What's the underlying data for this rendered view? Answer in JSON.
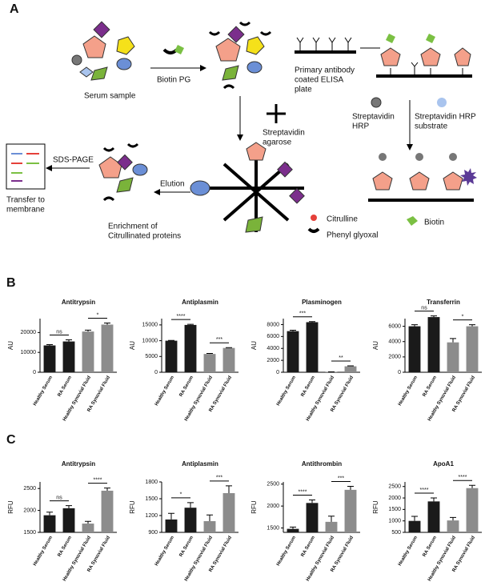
{
  "panel_a": {
    "label": "A",
    "serum_sample": "Serum sample",
    "biotin_pg": "Biotin PG",
    "plate": [
      "Primary antibody",
      "coated ELISA",
      "plate"
    ],
    "streptavidin_agarose": [
      "Streptavidin",
      "agarose"
    ],
    "streptavidin_hrp": [
      "Streptavidin",
      "HRP"
    ],
    "hrp_substrate": [
      "Streptavidin HRP",
      "substrate"
    ],
    "elution": "Elution",
    "sds_page": "SDS-PAGE",
    "transfer": [
      "Transfer to",
      "membrane"
    ],
    "enrichment": [
      "Enrichment of",
      "Citrullinated proteins"
    ],
    "legend": {
      "citrulline": "Citrulline",
      "phenyl_glyoxal": "Phenyl glyoxal",
      "biotin": "Biotin"
    }
  },
  "panel_b": {
    "label": "B"
  },
  "panel_c": {
    "label": "C"
  },
  "chart_data": [
    {
      "type": "bar",
      "title": "Antitrypsin",
      "ylabel": "AU",
      "categories": [
        "Healthy Serum",
        "RA Serum",
        "Healthy Synovial Fluid",
        "RA Synovial Fluid"
      ],
      "values": [
        13500,
        15500,
        20500,
        24000
      ],
      "errors": [
        400,
        800,
        700,
        800
      ],
      "colors": [
        "#1a1a1a",
        "#1a1a1a",
        "#8c8c8c",
        "#8c8c8c"
      ],
      "significance": [
        "ns",
        "*"
      ],
      "ylim": [
        0,
        27000
      ],
      "yticks": [
        0,
        10000,
        20000
      ]
    },
    {
      "type": "bar",
      "title": "Antiplasmin",
      "ylabel": "AU",
      "categories": [
        "Healthy Serum",
        "RA Serum",
        "Healthy Synovial Fluid",
        "RA Synovial Fluid"
      ],
      "values": [
        10000,
        15000,
        5800,
        7700
      ],
      "errors": [
        100,
        200,
        150,
        100
      ],
      "colors": [
        "#1a1a1a",
        "#1a1a1a",
        "#8c8c8c",
        "#8c8c8c"
      ],
      "significance": [
        "****",
        "***"
      ],
      "ylim": [
        0,
        17000
      ],
      "yticks": [
        0,
        5000,
        10000,
        15000
      ]
    },
    {
      "type": "bar",
      "title": "Plasminogen",
      "ylabel": "AU",
      "categories": [
        "Healthy Serum",
        "RA Serum",
        "Healthy Synovial Fluid",
        "RA Synovial Fluid"
      ],
      "values": [
        6900,
        8400,
        50,
        1000
      ],
      "errors": [
        150,
        100,
        20,
        80
      ],
      "colors": [
        "#1a1a1a",
        "#1a1a1a",
        "#8c8c8c",
        "#8c8c8c"
      ],
      "significance": [
        "***",
        "**"
      ],
      "ylim": [
        0,
        9000
      ],
      "yticks": [
        0,
        2000,
        4000,
        6000,
        8000
      ]
    },
    {
      "type": "bar",
      "title": "Transferrin",
      "ylabel": "AU",
      "categories": [
        "Healthy Serum",
        "RA Serum",
        "Healthy Synovial Fluid",
        "RA Synovial Fluid"
      ],
      "values": [
        6000,
        7200,
        3900,
        6000
      ],
      "errors": [
        200,
        150,
        500,
        200
      ],
      "colors": [
        "#1a1a1a",
        "#1a1a1a",
        "#8c8c8c",
        "#8c8c8c"
      ],
      "significance": [
        "ns",
        "*"
      ],
      "ylim": [
        0,
        7000
      ],
      "yticks": [
        0,
        2000,
        4000,
        6000
      ]
    },
    {
      "type": "bar",
      "title": "Antitrypsin",
      "ylabel": "RFU",
      "categories": [
        "Healthy Serum",
        "RA Serum",
        "Healthy Synovial Fluid",
        "RA Synovial Fluid"
      ],
      "values": [
        1890,
        2050,
        1700,
        2450
      ],
      "errors": [
        70,
        60,
        50,
        60
      ],
      "colors": [
        "#1a1a1a",
        "#1a1a1a",
        "#8c8c8c",
        "#8c8c8c"
      ],
      "significance": [
        "ns",
        "****"
      ],
      "ylim": [
        1500,
        2650
      ],
      "yticks": [
        1500,
        2000,
        2500
      ]
    },
    {
      "type": "bar",
      "title": "Antiplasmin",
      "ylabel": "RFU",
      "categories": [
        "Healthy Serum",
        "RA Serum",
        "Healthy Synovial Fluid",
        "RA Synovial Fluid"
      ],
      "values": [
        1130,
        1340,
        1100,
        1600
      ],
      "errors": [
        110,
        90,
        110,
        130
      ],
      "colors": [
        "#1a1a1a",
        "#1a1a1a",
        "#8c8c8c",
        "#8c8c8c"
      ],
      "significance": [
        "*",
        "***"
      ],
      "ylim": [
        900,
        1800
      ],
      "yticks": [
        900,
        1200,
        1500,
        1800
      ]
    },
    {
      "type": "bar",
      "title": "Antithrombin",
      "ylabel": "RFU",
      "categories": [
        "Healthy Serum",
        "RA Serum",
        "Healthy Synovial Fluid",
        "RA Synovial Fluid"
      ],
      "values": [
        1480,
        2070,
        1640,
        2370
      ],
      "errors": [
        40,
        70,
        130,
        80
      ],
      "colors": [
        "#1a1a1a",
        "#1a1a1a",
        "#8c8c8c",
        "#8c8c8c"
      ],
      "significance": [
        "****",
        "***"
      ],
      "ylim": [
        1400,
        2550
      ],
      "yticks": [
        1500,
        2000,
        2500
      ]
    },
    {
      "type": "bar",
      "title": "ApoA1",
      "ylabel": "RFU",
      "categories": [
        "Healthy Serum",
        "RA Serum",
        "Healthy Synovial Fluid",
        "RA Synovial Fluid"
      ],
      "values": [
        1000,
        1850,
        1020,
        2430
      ],
      "errors": [
        200,
        150,
        130,
        120
      ],
      "colors": [
        "#1a1a1a",
        "#1a1a1a",
        "#8c8c8c",
        "#8c8c8c"
      ],
      "significance": [
        "****",
        "****"
      ],
      "ylim": [
        500,
        2700
      ],
      "yticks": [
        500,
        1000,
        1500,
        2000,
        2500
      ]
    }
  ]
}
